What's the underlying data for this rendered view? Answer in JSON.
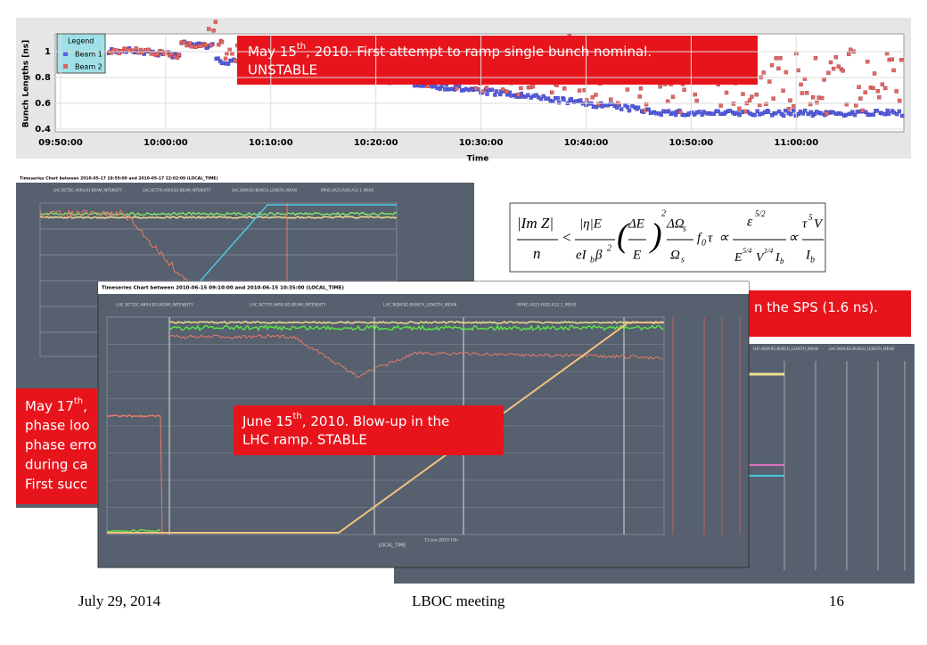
{
  "top_chart": {
    "y_label": "Bunch Lengths [ns]",
    "x_label": "Time",
    "yticks": [
      "1",
      "0.8",
      "0.6",
      "0.4"
    ],
    "xticks": [
      "09:50:00",
      "10:00:00",
      "10:10:00",
      "10:20:00",
      "10:30:00",
      "10:40:00",
      "10:50:00",
      "11:00:00"
    ],
    "legend": {
      "title": "Legend",
      "items": [
        "Beam 1",
        "Beam 2"
      ]
    }
  },
  "callouts": [
    {
      "pre": "May 15",
      "sup": "th",
      "post": ", 2010. First attempt to ramp single bunch nominal.",
      "more": [
        "UNSTABLE"
      ]
    },
    {
      "pre": "May 17",
      "sup": "th",
      "post": ",",
      "more": [
        "phase loo",
        "phase erro",
        "during ca",
        "First succ"
      ]
    },
    {
      "pre": "n the SPS (1.6 ns).",
      "more": []
    },
    {
      "pre": "June 15",
      "sup": "th",
      "post": ", 2010. Blow-up in the",
      "more": [
        "LHC ramp. STABLE"
      ]
    }
  ],
  "screenshots": [
    {
      "title": "Timeseries Chart between 2010-05-17 19:55:00 and 2010-05-17 22:02:09 (LOCAL_TIME)",
      "legend": [
        "LHC.BCTDC.A6R4.B1:BEAM_INTENSITY",
        "LHC.BCTFR.A6R4.B1:BEAM_INTENSITY",
        "LHC.BQM.B1:BUNCH_LENGTH_MEAN",
        "RPHE.UA23.RGD.A12.1_MEAS"
      ]
    },
    {
      "title": "Timeseries Chart between 2010-06-15 09:10:00 and 2010-06-15 10:35:00 (LOCAL_TIME)",
      "legend": [
        "LHC.BCTDC.A6R4.B2:BEAM_INTENSITY",
        "LHC.BCTFR.A6R4.B2:BEAM_INTENSITY",
        "LHC.BQM.B2:BUNCH_LENGTH_MEAN",
        "RPHE.UA23.RGD.A12.1_MEAS"
      ],
      "x_label": "LOCAL_TIME",
      "date": "15-Jun-2010 10h"
    },
    {
      "legend": [
        "LHC.BQM.B1:BUNCH_LENGTH_MEAN",
        "LHC.BQM.B2:BUNCH_LENGTH_MEAN"
      ]
    }
  ],
  "formula": [
    "|Im Z|",
    "n",
    "<",
    "|η|E",
    "eI",
    "b",
    "β",
    "2",
    "(",
    "ΔE",
    "E",
    ")",
    "2",
    "ΔΩ",
    "s",
    "Ω",
    "s",
    "f",
    "0",
    "τ",
    "∝",
    "ε",
    "5/2",
    "E",
    "5/4",
    "V",
    "1/4",
    "I",
    "b",
    "∝",
    "τ",
    "5",
    "V",
    "I",
    "b"
  ],
  "footer": {
    "date": "July 29, 2014",
    "title": "LBOC meeting",
    "page": "16"
  }
}
